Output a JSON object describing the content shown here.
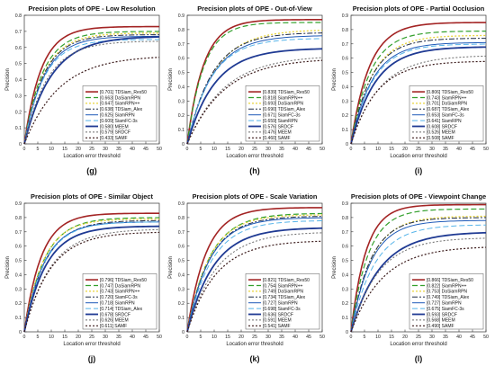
{
  "colors": [
    "#a32424",
    "#33a02c",
    "#e8d43a",
    "#1f2a44",
    "#1f5ab8",
    "#56b4e9",
    "#1f3a93",
    "#6b6b6b",
    "#3a1a1a"
  ],
  "dashes": [
    "",
    "6,3",
    "2,2",
    "6,2,2,2",
    "",
    "6,3",
    "",
    "2,2",
    "2,2"
  ],
  "widths": [
    1.6,
    1.2,
    1.3,
    1.0,
    1.0,
    1.0,
    1.8,
    1.0,
    1.2
  ],
  "chart_data": [
    {
      "type": "line",
      "panel": "(g)",
      "title": "Precision plots of OPE - Low Resolution",
      "xlabel": "Location error threshold",
      "ylabel": "Precision",
      "xlim": [
        0,
        50
      ],
      "ylim": [
        0,
        0.8
      ],
      "xticks": [
        "0",
        "5",
        "10",
        "15",
        "20",
        "25",
        "30",
        "35",
        "40",
        "45",
        "50"
      ],
      "yticks": [
        "0",
        "0.1",
        "0.2",
        "0.3",
        "0.4",
        "0.5",
        "0.6",
        "0.7",
        "0.8"
      ],
      "legend": "lower-right",
      "series": [
        {
          "name": "TDSiam_Res50",
          "score": "[0.701]",
          "final": 0.73
        },
        {
          "name": "DaSiamRPN",
          "score": "[0.663]",
          "final": 0.7
        },
        {
          "name": "SiamRPN++",
          "score": "[0.647]",
          "final": 0.69
        },
        {
          "name": "TDSiam_Alex",
          "score": "[0.638]",
          "final": 0.68
        },
        {
          "name": "SiamRPN",
          "score": "[0.625]",
          "final": 0.67
        },
        {
          "name": "SiamFC-3s",
          "score": "[0.609]",
          "final": 0.65
        },
        {
          "name": "MEEM",
          "score": "[0.580]",
          "final": 0.67
        },
        {
          "name": "SRDCF",
          "score": "[0.579]",
          "final": 0.64
        },
        {
          "name": "SAMF",
          "score": "[0.433]",
          "final": 0.55
        }
      ]
    },
    {
      "type": "line",
      "panel": "(h)",
      "title": "Precision plots of OPE - Out-of-View",
      "xlabel": "Location error threshold",
      "ylabel": "Precision",
      "xlim": [
        0,
        50
      ],
      "ylim": [
        0,
        0.9
      ],
      "xticks": [
        "0",
        "5",
        "10",
        "15",
        "20",
        "25",
        "30",
        "35",
        "40",
        "45",
        "50"
      ],
      "yticks": [
        "0",
        "0.1",
        "0.2",
        "0.3",
        "0.4",
        "0.5",
        "0.6",
        "0.7",
        "0.8",
        "0.9"
      ],
      "legend": "lower-right",
      "series": [
        {
          "name": "TDSiam_Res50",
          "score": "[0.839]",
          "final": 0.87
        },
        {
          "name": "SiamRPN++",
          "score": "[0.818]",
          "final": 0.85
        },
        {
          "name": "DaSiamRPN",
          "score": "[0.693]",
          "final": 0.8
        },
        {
          "name": "TDSiam_Alex",
          "score": "[0.690]",
          "final": 0.78
        },
        {
          "name": "SiamFC-3s",
          "score": "[0.671]",
          "final": 0.76
        },
        {
          "name": "SiamRPN",
          "score": "[0.659]",
          "final": 0.74
        },
        {
          "name": "SRDCF",
          "score": "[0.576]",
          "final": 0.67
        },
        {
          "name": "MEEM",
          "score": "[0.476]",
          "final": 0.62
        },
        {
          "name": "SAMF",
          "score": "[0.460]",
          "final": 0.6
        }
      ]
    },
    {
      "type": "line",
      "panel": "(i)",
      "title": "Precision plots of OPE - Partial Occlusion",
      "xlabel": "Location error threshold",
      "ylabel": "Precision",
      "xlim": [
        0,
        50
      ],
      "ylim": [
        0,
        0.9
      ],
      "xticks": [
        "0",
        "5",
        "10",
        "15",
        "20",
        "25",
        "30",
        "35",
        "40",
        "45",
        "50"
      ],
      "yticks": [
        "0",
        "0.1",
        "0.2",
        "0.3",
        "0.4",
        "0.5",
        "0.6",
        "0.7",
        "0.8",
        "0.9"
      ],
      "legend": "lower-right",
      "series": [
        {
          "name": "TDSiam_Res50",
          "score": "[0.806]",
          "final": 0.85
        },
        {
          "name": "SiamRPN++",
          "score": "[0.743]",
          "final": 0.79
        },
        {
          "name": "DaSiamRPN",
          "score": "[0.701]",
          "final": 0.76
        },
        {
          "name": "TDSiam_Alex",
          "score": "[0.687]",
          "final": 0.74
        },
        {
          "name": "SiamFC-3s",
          "score": "[0.653]",
          "final": 0.71
        },
        {
          "name": "SiamRPN",
          "score": "[0.641]",
          "final": 0.7
        },
        {
          "name": "SRDCF",
          "score": "[0.608]",
          "final": 0.68
        },
        {
          "name": "MEEM",
          "score": "[0.526]",
          "final": 0.62
        },
        {
          "name": "SAMF",
          "score": "[0.508]",
          "final": 0.58
        }
      ]
    },
    {
      "type": "line",
      "panel": "(j)",
      "title": "Precision plots of OPE - Similar Object",
      "xlabel": "Location error threshold",
      "ylabel": "Precision",
      "xlim": [
        0,
        50
      ],
      "ylim": [
        0,
        0.9
      ],
      "xticks": [
        "0",
        "5",
        "10",
        "15",
        "20",
        "25",
        "30",
        "35",
        "40",
        "45",
        "50"
      ],
      "yticks": [
        "0",
        "0.1",
        "0.2",
        "0.3",
        "0.4",
        "0.5",
        "0.6",
        "0.7",
        "0.8",
        "0.9"
      ],
      "legend": "lower-right",
      "series": [
        {
          "name": "TDSiam_Res50",
          "score": "[0.796]",
          "final": 0.83
        },
        {
          "name": "DaSiamRPN",
          "score": "[0.747]",
          "final": 0.8
        },
        {
          "name": "SiamRPN++",
          "score": "[0.743]",
          "final": 0.79
        },
        {
          "name": "SiamFC-3s",
          "score": "[0.720]",
          "final": 0.78
        },
        {
          "name": "SiamRPN",
          "score": "[0.718]",
          "final": 0.77
        },
        {
          "name": "TDSiam_Alex",
          "score": "[0.714]",
          "final": 0.77
        },
        {
          "name": "SRDCF",
          "score": "[0.678]",
          "final": 0.74
        },
        {
          "name": "MEEM",
          "score": "[0.626]",
          "final": 0.72
        },
        {
          "name": "SAMF",
          "score": "[0.611]",
          "final": 0.7
        }
      ]
    },
    {
      "type": "line",
      "panel": "(k)",
      "title": "Precision plots of OPE - Scale Variation",
      "xlabel": "Location error threshold",
      "ylabel": "Precision",
      "xlim": [
        0,
        50
      ],
      "ylim": [
        0,
        0.9
      ],
      "xticks": [
        "0",
        "5",
        "10",
        "15",
        "20",
        "25",
        "30",
        "35",
        "40",
        "45",
        "50"
      ],
      "yticks": [
        "0",
        "0.1",
        "0.2",
        "0.3",
        "0.4",
        "0.5",
        "0.6",
        "0.7",
        "0.8",
        "0.9"
      ],
      "legend": "lower-right",
      "series": [
        {
          "name": "TDSiam_Res50",
          "score": "[0.821]",
          "final": 0.87
        },
        {
          "name": "SiamRPN++",
          "score": "[0.754]",
          "final": 0.83
        },
        {
          "name": "DaSiamRPN",
          "score": "[0.749]",
          "final": 0.82
        },
        {
          "name": "TDSiam_Alex",
          "score": "[0.734]",
          "final": 0.81
        },
        {
          "name": "SiamRPN",
          "score": "[0.727]",
          "final": 0.8
        },
        {
          "name": "SiamFC-3s",
          "score": "[0.698]",
          "final": 0.78
        },
        {
          "name": "SRDCF",
          "score": "[0.636]",
          "final": 0.73
        },
        {
          "name": "MEEM",
          "score": "[0.591]",
          "final": 0.7
        },
        {
          "name": "SAMF",
          "score": "[0.541]",
          "final": 0.64
        }
      ]
    },
    {
      "type": "line",
      "panel": "(l)",
      "title": "Precision plots of OPE - Viewpoint Change",
      "xlabel": "Location error threshold",
      "ylabel": "Precision",
      "xlim": [
        0,
        50
      ],
      "ylim": [
        0,
        0.9
      ],
      "xticks": [
        "0",
        "5",
        "10",
        "15",
        "20",
        "25",
        "30",
        "35",
        "40",
        "45",
        "50"
      ],
      "yticks": [
        "0",
        "0.1",
        "0.2",
        "0.3",
        "0.4",
        "0.5",
        "0.6",
        "0.7",
        "0.8",
        "0.9"
      ],
      "legend": "lower-right",
      "series": [
        {
          "name": "TDSiam_Res50",
          "score": "[0.866]",
          "final": 0.89
        },
        {
          "name": "SiamRPN++",
          "score": "[0.822]",
          "final": 0.86
        },
        {
          "name": "DaSiamRPN",
          "score": "[0.753]",
          "final": 0.81
        },
        {
          "name": "TDSiam_Alex",
          "score": "[0.749]",
          "final": 0.8
        },
        {
          "name": "SiamRPN",
          "score": "[0.727]",
          "final": 0.78
        },
        {
          "name": "SiamFC-3s",
          "score": "[0.675]",
          "final": 0.75
        },
        {
          "name": "SRDCF",
          "score": "[0.593]",
          "final": 0.7
        },
        {
          "name": "MEEM",
          "score": "[0.568]",
          "final": 0.66
        },
        {
          "name": "SAMF",
          "score": "[0.490]",
          "final": 0.6
        }
      ]
    }
  ]
}
